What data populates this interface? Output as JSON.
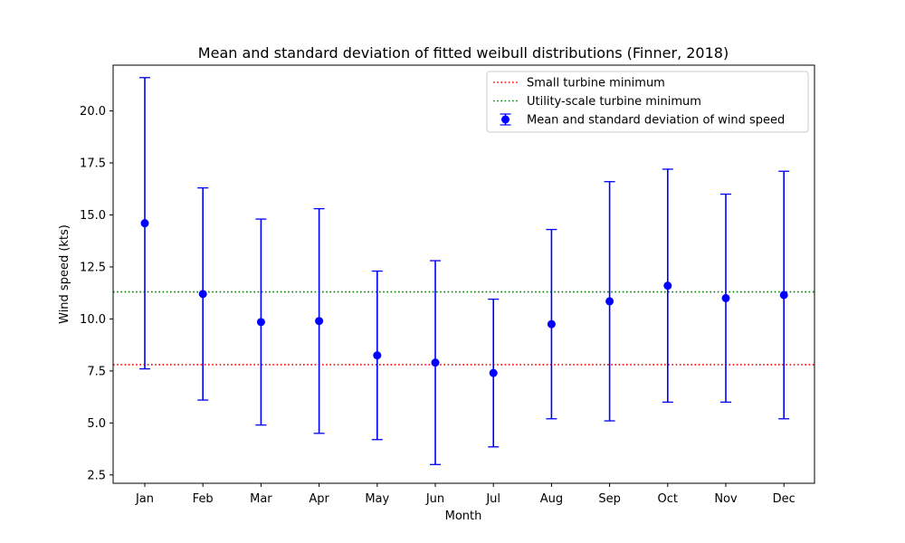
{
  "chart_data": {
    "type": "scatter",
    "title": "Mean and standard deviation of fitted weibull distributions (Finner, 2018)",
    "xlabel": "Month",
    "ylabel": "Wind speed (kts)",
    "ylim": [
      2.1,
      22.2
    ],
    "yticks": [
      "2.5",
      "5.0",
      "7.5",
      "10.0",
      "12.5",
      "15.0",
      "17.5",
      "20.0"
    ],
    "categories": [
      "Jan",
      "Feb",
      "Mar",
      "Apr",
      "May",
      "Jun",
      "Jul",
      "Aug",
      "Sep",
      "Oct",
      "Nov",
      "Dec"
    ],
    "series": [
      {
        "name": "Mean and standard deviation of wind speed",
        "color": "#0000ff",
        "means": [
          14.6,
          11.2,
          9.85,
          9.9,
          8.25,
          7.9,
          7.4,
          9.75,
          10.85,
          11.6,
          11.0,
          11.15
        ],
        "stds": [
          7.0,
          5.1,
          4.95,
          5.4,
          4.05,
          4.9,
          3.55,
          4.55,
          5.75,
          5.6,
          5.0,
          5.95
        ]
      }
    ],
    "reference_lines": [
      {
        "name": "Small turbine minimum",
        "value": 7.8,
        "color": "#ff0000",
        "style": "dotted"
      },
      {
        "name": "Utility-scale turbine minimum",
        "value": 11.3,
        "color": "#008000",
        "style": "dotted"
      }
    ],
    "grid": false,
    "legend": "top-right"
  }
}
